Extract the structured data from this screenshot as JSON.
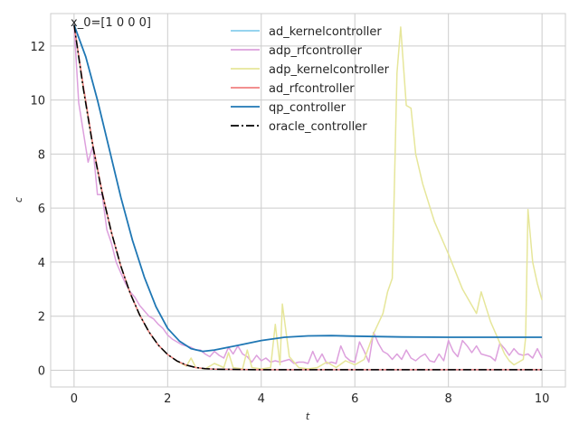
{
  "chart_data": {
    "type": "line",
    "title": "",
    "annotation": "x_0=[1 0 0 0]",
    "xlabel": "t",
    "ylabel": "c",
    "xlim": [
      -0.5,
      10.5
    ],
    "ylim": [
      -0.62,
      13.2
    ],
    "xticks": [
      0,
      2,
      4,
      6,
      8,
      10
    ],
    "yticks": [
      0,
      2,
      4,
      6,
      8,
      10,
      12
    ],
    "grid": true,
    "legend_position": "top-center",
    "series": [
      {
        "name": "ad_kernelcontroller",
        "color": "#87ceeb",
        "style": "solid",
        "points": [
          [
            0,
            12.78
          ],
          [
            0.1,
            11.55
          ],
          [
            0.2,
            10.4
          ],
          [
            0.3,
            9.33
          ],
          [
            0.4,
            8.3
          ],
          [
            0.5,
            7.4
          ],
          [
            0.6,
            6.55
          ],
          [
            0.7,
            5.8
          ],
          [
            0.8,
            5.1
          ],
          [
            0.9,
            4.45
          ],
          [
            1.0,
            3.85
          ],
          [
            1.2,
            2.85
          ],
          [
            1.4,
            2.05
          ],
          [
            1.6,
            1.42
          ],
          [
            1.8,
            0.93
          ],
          [
            2.0,
            0.58
          ],
          [
            2.2,
            0.34
          ],
          [
            2.4,
            0.19
          ],
          [
            2.6,
            0.1
          ],
          [
            2.8,
            0.06
          ],
          [
            3.0,
            0.04
          ],
          [
            4.0,
            0.02
          ],
          [
            6.0,
            0.02
          ],
          [
            8.0,
            0.02
          ],
          [
            10.0,
            0.02
          ]
        ]
      },
      {
        "name": "adp_rfcontroller",
        "color": "#dda0dd",
        "style": "solid",
        "points": [
          [
            0,
            12.78
          ],
          [
            0.1,
            9.9
          ],
          [
            0.2,
            8.8
          ],
          [
            0.3,
            7.7
          ],
          [
            0.4,
            8.3
          ],
          [
            0.5,
            6.5
          ],
          [
            0.6,
            6.5
          ],
          [
            0.7,
            5.2
          ],
          [
            0.8,
            4.7
          ],
          [
            0.9,
            4.0
          ],
          [
            1.0,
            3.6
          ],
          [
            1.1,
            3.2
          ],
          [
            1.2,
            2.9
          ],
          [
            1.3,
            2.7
          ],
          [
            1.4,
            2.4
          ],
          [
            1.5,
            2.2
          ],
          [
            1.6,
            2.0
          ],
          [
            1.7,
            1.9
          ],
          [
            1.8,
            1.7
          ],
          [
            1.9,
            1.55
          ],
          [
            2.0,
            1.3
          ],
          [
            2.1,
            1.15
          ],
          [
            2.2,
            1.05
          ],
          [
            2.3,
            0.95
          ],
          [
            2.4,
            0.9
          ],
          [
            2.5,
            0.85
          ],
          [
            2.6,
            0.75
          ],
          [
            2.7,
            0.75
          ],
          [
            2.8,
            0.6
          ],
          [
            2.9,
            0.5
          ],
          [
            3.0,
            0.7
          ],
          [
            3.1,
            0.55
          ],
          [
            3.2,
            0.45
          ],
          [
            3.3,
            0.85
          ],
          [
            3.4,
            0.6
          ],
          [
            3.5,
            0.9
          ],
          [
            3.6,
            0.6
          ],
          [
            3.7,
            0.5
          ],
          [
            3.8,
            0.3
          ],
          [
            3.9,
            0.55
          ],
          [
            4.0,
            0.35
          ],
          [
            4.1,
            0.45
          ],
          [
            4.2,
            0.3
          ],
          [
            4.3,
            0.35
          ],
          [
            4.4,
            0.3
          ],
          [
            4.5,
            0.35
          ],
          [
            4.6,
            0.4
          ],
          [
            4.7,
            0.25
          ],
          [
            4.8,
            0.3
          ],
          [
            4.9,
            0.3
          ],
          [
            5.0,
            0.25
          ],
          [
            5.1,
            0.7
          ],
          [
            5.2,
            0.3
          ],
          [
            5.3,
            0.6
          ],
          [
            5.4,
            0.25
          ],
          [
            5.5,
            0.3
          ],
          [
            5.6,
            0.25
          ],
          [
            5.7,
            0.9
          ],
          [
            5.8,
            0.5
          ],
          [
            5.9,
            0.35
          ],
          [
            6.0,
            0.3
          ],
          [
            6.1,
            1.05
          ],
          [
            6.2,
            0.7
          ],
          [
            6.3,
            0.3
          ],
          [
            6.4,
            1.4
          ],
          [
            6.5,
            1.0
          ],
          [
            6.6,
            0.7
          ],
          [
            6.7,
            0.6
          ],
          [
            6.8,
            0.4
          ],
          [
            6.9,
            0.6
          ],
          [
            7.0,
            0.4
          ],
          [
            7.1,
            0.75
          ],
          [
            7.2,
            0.45
          ],
          [
            7.3,
            0.35
          ],
          [
            7.4,
            0.5
          ],
          [
            7.5,
            0.6
          ],
          [
            7.6,
            0.35
          ],
          [
            7.7,
            0.3
          ],
          [
            7.8,
            0.6
          ],
          [
            7.9,
            0.35
          ],
          [
            8.0,
            1.1
          ],
          [
            8.1,
            0.7
          ],
          [
            8.2,
            0.5
          ],
          [
            8.3,
            1.1
          ],
          [
            8.4,
            0.9
          ],
          [
            8.5,
            0.65
          ],
          [
            8.6,
            0.9
          ],
          [
            8.7,
            0.6
          ],
          [
            8.8,
            0.55
          ],
          [
            8.9,
            0.5
          ],
          [
            9.0,
            0.35
          ],
          [
            9.1,
            1.0
          ],
          [
            9.2,
            0.8
          ],
          [
            9.3,
            0.55
          ],
          [
            9.4,
            0.8
          ],
          [
            9.5,
            0.6
          ],
          [
            9.6,
            0.55
          ],
          [
            9.7,
            0.6
          ],
          [
            9.8,
            0.45
          ],
          [
            9.9,
            0.8
          ],
          [
            10.0,
            0.45
          ]
        ]
      },
      {
        "name": "adp_kernelcontroller",
        "color": "#e6e69a",
        "style": "solid",
        "points": [
          [
            0,
            12.78
          ],
          [
            0.2,
            10.4
          ],
          [
            0.4,
            8.3
          ],
          [
            0.6,
            6.55
          ],
          [
            0.8,
            5.1
          ],
          [
            1.0,
            3.85
          ],
          [
            1.2,
            2.85
          ],
          [
            1.4,
            2.05
          ],
          [
            1.6,
            1.42
          ],
          [
            1.8,
            0.93
          ],
          [
            2.0,
            0.58
          ],
          [
            2.2,
            0.34
          ],
          [
            2.4,
            0.15
          ],
          [
            2.5,
            0.45
          ],
          [
            2.6,
            0.1
          ],
          [
            2.8,
            0.05
          ],
          [
            3.0,
            0.25
          ],
          [
            3.2,
            0.1
          ],
          [
            3.3,
            0.65
          ],
          [
            3.4,
            0.1
          ],
          [
            3.6,
            0.05
          ],
          [
            3.7,
            0.75
          ],
          [
            3.8,
            0.1
          ],
          [
            4.0,
            0.05
          ],
          [
            4.2,
            0.1
          ],
          [
            4.3,
            1.7
          ],
          [
            4.4,
            0.2
          ],
          [
            4.45,
            2.45
          ],
          [
            4.6,
            0.5
          ],
          [
            4.8,
            0.1
          ],
          [
            5.0,
            0.05
          ],
          [
            5.2,
            0.1
          ],
          [
            5.4,
            0.3
          ],
          [
            5.6,
            0.1
          ],
          [
            5.8,
            0.35
          ],
          [
            6.0,
            0.2
          ],
          [
            6.2,
            0.4
          ],
          [
            6.4,
            1.35
          ],
          [
            6.6,
            2.1
          ],
          [
            6.7,
            2.9
          ],
          [
            6.8,
            3.4
          ],
          [
            6.9,
            11.0
          ],
          [
            6.98,
            12.7
          ],
          [
            7.1,
            9.8
          ],
          [
            7.2,
            9.7
          ],
          [
            7.3,
            8.0
          ],
          [
            7.45,
            6.9
          ],
          [
            7.7,
            5.5
          ],
          [
            8.0,
            4.3
          ],
          [
            8.3,
            3.0
          ],
          [
            8.6,
            2.1
          ],
          [
            8.7,
            2.9
          ],
          [
            8.9,
            1.8
          ],
          [
            9.1,
            1.0
          ],
          [
            9.2,
            0.6
          ],
          [
            9.3,
            0.35
          ],
          [
            9.4,
            0.2
          ],
          [
            9.5,
            0.3
          ],
          [
            9.6,
            0.4
          ],
          [
            9.65,
            1.2
          ],
          [
            9.7,
            5.95
          ],
          [
            9.8,
            4.0
          ],
          [
            9.9,
            3.2
          ],
          [
            10.0,
            2.6
          ]
        ]
      },
      {
        "name": "ad_rfcontroller",
        "color": "#f08080",
        "style": "solid",
        "points": [
          [
            0,
            12.78
          ],
          [
            0.2,
            10.5
          ],
          [
            0.4,
            8.35
          ],
          [
            0.6,
            6.6
          ],
          [
            0.8,
            5.1
          ],
          [
            1.0,
            3.85
          ],
          [
            1.2,
            2.85
          ],
          [
            1.4,
            2.05
          ],
          [
            1.6,
            1.42
          ],
          [
            1.8,
            0.93
          ],
          [
            2.0,
            0.58
          ],
          [
            2.2,
            0.34
          ],
          [
            2.4,
            0.19
          ],
          [
            2.6,
            0.1
          ],
          [
            2.8,
            0.06
          ],
          [
            3.0,
            0.04
          ],
          [
            4.0,
            0.02
          ],
          [
            6.0,
            0.02
          ],
          [
            8.0,
            0.02
          ],
          [
            10.0,
            0.02
          ]
        ]
      },
      {
        "name": "qp_controller",
        "color": "#1f77b4",
        "style": "solid",
        "points": [
          [
            0,
            12.78
          ],
          [
            0.25,
            11.6
          ],
          [
            0.5,
            10.0
          ],
          [
            0.75,
            8.2
          ],
          [
            1.0,
            6.4
          ],
          [
            1.25,
            4.8
          ],
          [
            1.5,
            3.45
          ],
          [
            1.75,
            2.35
          ],
          [
            2.0,
            1.55
          ],
          [
            2.25,
            1.08
          ],
          [
            2.5,
            0.8
          ],
          [
            2.75,
            0.7
          ],
          [
            3.0,
            0.75
          ],
          [
            3.5,
            0.92
          ],
          [
            4.0,
            1.1
          ],
          [
            4.5,
            1.22
          ],
          [
            5.0,
            1.27
          ],
          [
            5.5,
            1.28
          ],
          [
            6.0,
            1.26
          ],
          [
            7.0,
            1.23
          ],
          [
            8.0,
            1.22
          ],
          [
            9.0,
            1.22
          ],
          [
            10.0,
            1.22
          ]
        ]
      },
      {
        "name": "oracle_controller",
        "color": "#000000",
        "style": "dashdot",
        "points": [
          [
            0,
            12.78
          ],
          [
            0.2,
            10.4
          ],
          [
            0.4,
            8.3
          ],
          [
            0.6,
            6.55
          ],
          [
            0.8,
            5.1
          ],
          [
            1.0,
            3.85
          ],
          [
            1.2,
            2.85
          ],
          [
            1.4,
            2.05
          ],
          [
            1.6,
            1.42
          ],
          [
            1.8,
            0.93
          ],
          [
            2.0,
            0.58
          ],
          [
            2.2,
            0.34
          ],
          [
            2.4,
            0.19
          ],
          [
            2.6,
            0.1
          ],
          [
            2.8,
            0.06
          ],
          [
            3.0,
            0.04
          ],
          [
            4.0,
            0.02
          ],
          [
            6.0,
            0.02
          ],
          [
            8.0,
            0.02
          ],
          [
            10.0,
            0.02
          ]
        ]
      }
    ]
  }
}
